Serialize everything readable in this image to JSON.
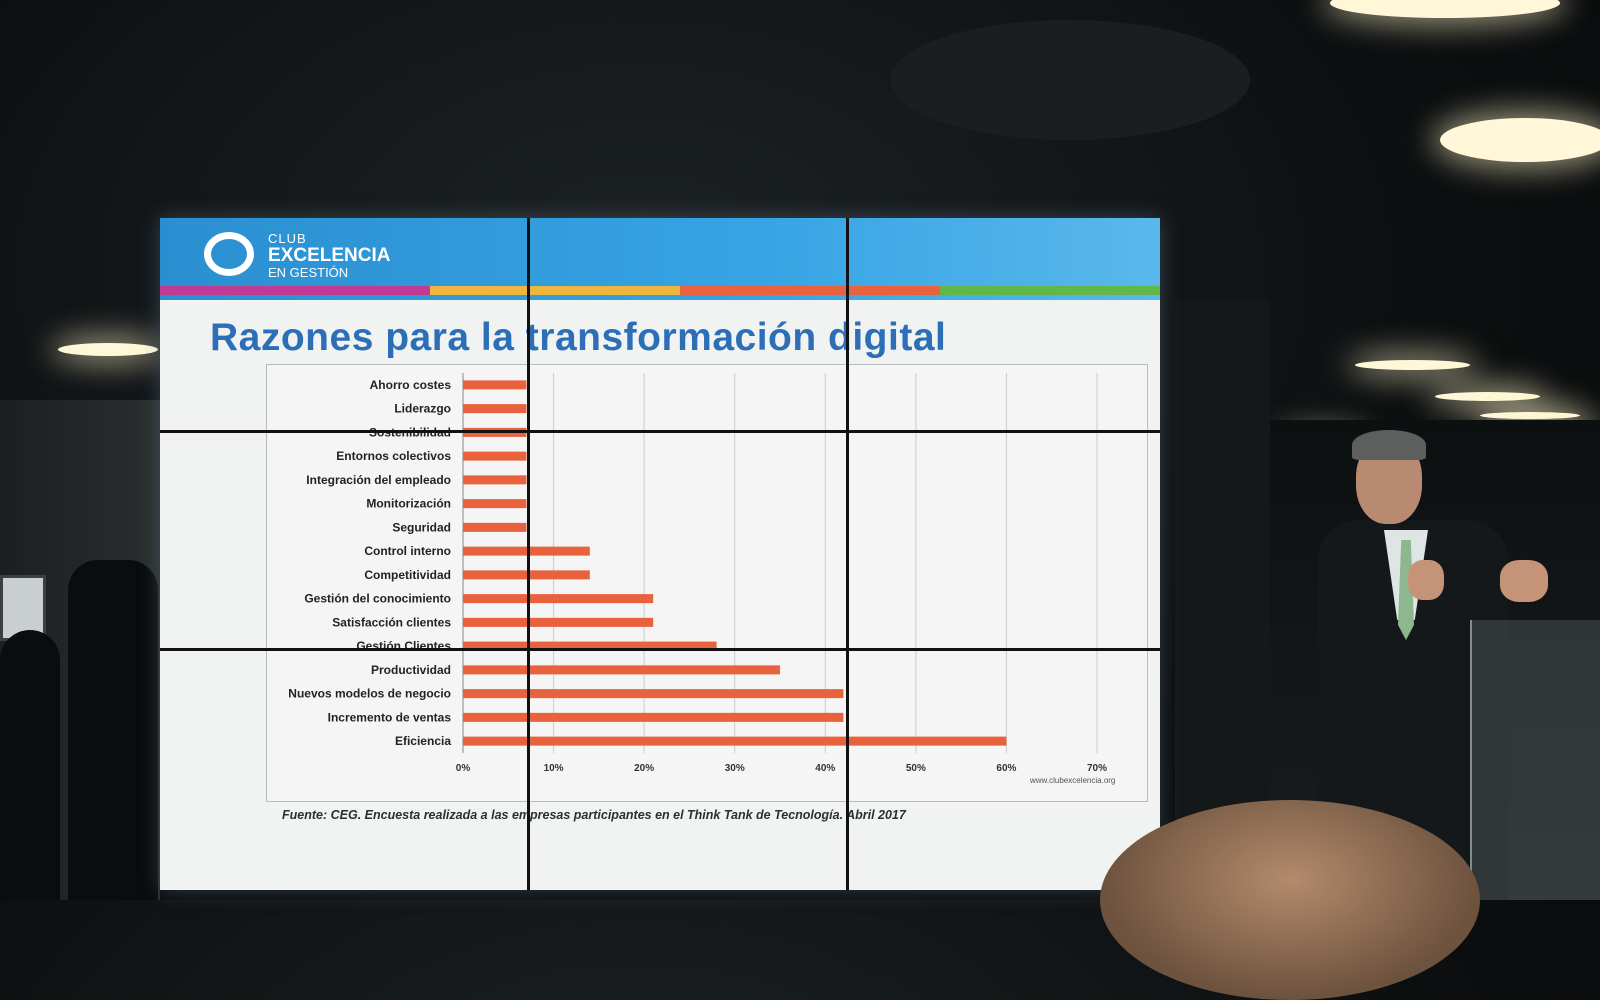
{
  "slide": {
    "logo": {
      "line1": "CLUB",
      "line2": "EXCELENCIA",
      "line3": "EN GESTIÓN"
    },
    "title": "Razones para la transformación digital",
    "source": "Fuente: CEG. Encuesta realizada a las empresas participantes en el Think Tank de Tecnología. Abril 2017",
    "website": "www.clubexcelencia.org"
  },
  "colors": {
    "header_blue": "#2f9ad9",
    "title_blue": "#2d6fb6",
    "bar": "#e8623e",
    "stripe": [
      "#c13a93",
      "#f0b63c",
      "#e8623e",
      "#5fb848"
    ]
  },
  "chart_data": {
    "type": "bar",
    "orientation": "horizontal",
    "categories": [
      "Ahorro costes",
      "Liderazgo",
      "Sostenibilidad",
      "Entornos colectivos",
      "Integración del empleado",
      "Monitorización",
      "Seguridad",
      "Control interno",
      "Competitividad",
      "Gestión del conocimiento",
      "Satisfacción clientes",
      "Gestión Clientes",
      "Productividad",
      "Nuevos modelos de negocio",
      "Incremento de ventas",
      "Eficiencia"
    ],
    "values": [
      7,
      7,
      7,
      7,
      7,
      7,
      7,
      14,
      14,
      21,
      21,
      28,
      35,
      42,
      42,
      60
    ],
    "x_ticks": [
      "0%",
      "10%",
      "20%",
      "30%",
      "40%",
      "50%",
      "60%",
      "70%"
    ],
    "xlim": [
      0,
      70
    ],
    "grid": "vertical",
    "legend": "none"
  }
}
